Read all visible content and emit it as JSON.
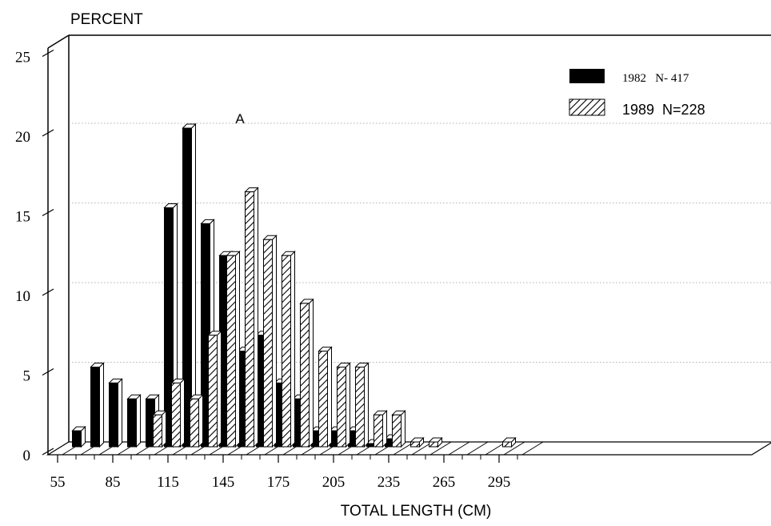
{
  "chart_data": {
    "type": "bar",
    "ylabel": "PERCENT",
    "xlabel": "TOTAL LENGTH (CM)",
    "ylim": [
      0,
      25
    ],
    "yticks": [
      "0",
      "5",
      "10",
      "15",
      "20",
      "25"
    ],
    "xticks": [
      "55",
      "85",
      "115",
      "145",
      "175",
      "205",
      "235",
      "265",
      "295"
    ],
    "grid": true,
    "legend_position": "top-right",
    "categories": [
      55,
      65,
      75,
      85,
      95,
      105,
      115,
      125,
      135,
      145,
      155,
      165,
      175,
      185,
      195,
      205,
      215,
      225,
      235,
      245,
      255,
      265,
      275,
      285,
      295
    ],
    "series": [
      {
        "name": "1982",
        "legend_label": "1982   N- 417",
        "color": "#000000",
        "pattern": "solid",
        "values": [
          1,
          5,
          4,
          3,
          3,
          15,
          20,
          14,
          12,
          6,
          7,
          4,
          3,
          1,
          1,
          1,
          0.2,
          0.5,
          0,
          0,
          0,
          0,
          0,
          0,
          0
        ]
      },
      {
        "name": "1989",
        "legend_label": "1989  N=228",
        "color": "#000000",
        "pattern": "hatched",
        "values": [
          0,
          0,
          0,
          0,
          0,
          2,
          4,
          3,
          7,
          12,
          16,
          13,
          12,
          9,
          6,
          5,
          5,
          2,
          2,
          0.3,
          0.3,
          0,
          0,
          0,
          0.3
        ]
      }
    ],
    "annotations": [
      "A"
    ]
  }
}
